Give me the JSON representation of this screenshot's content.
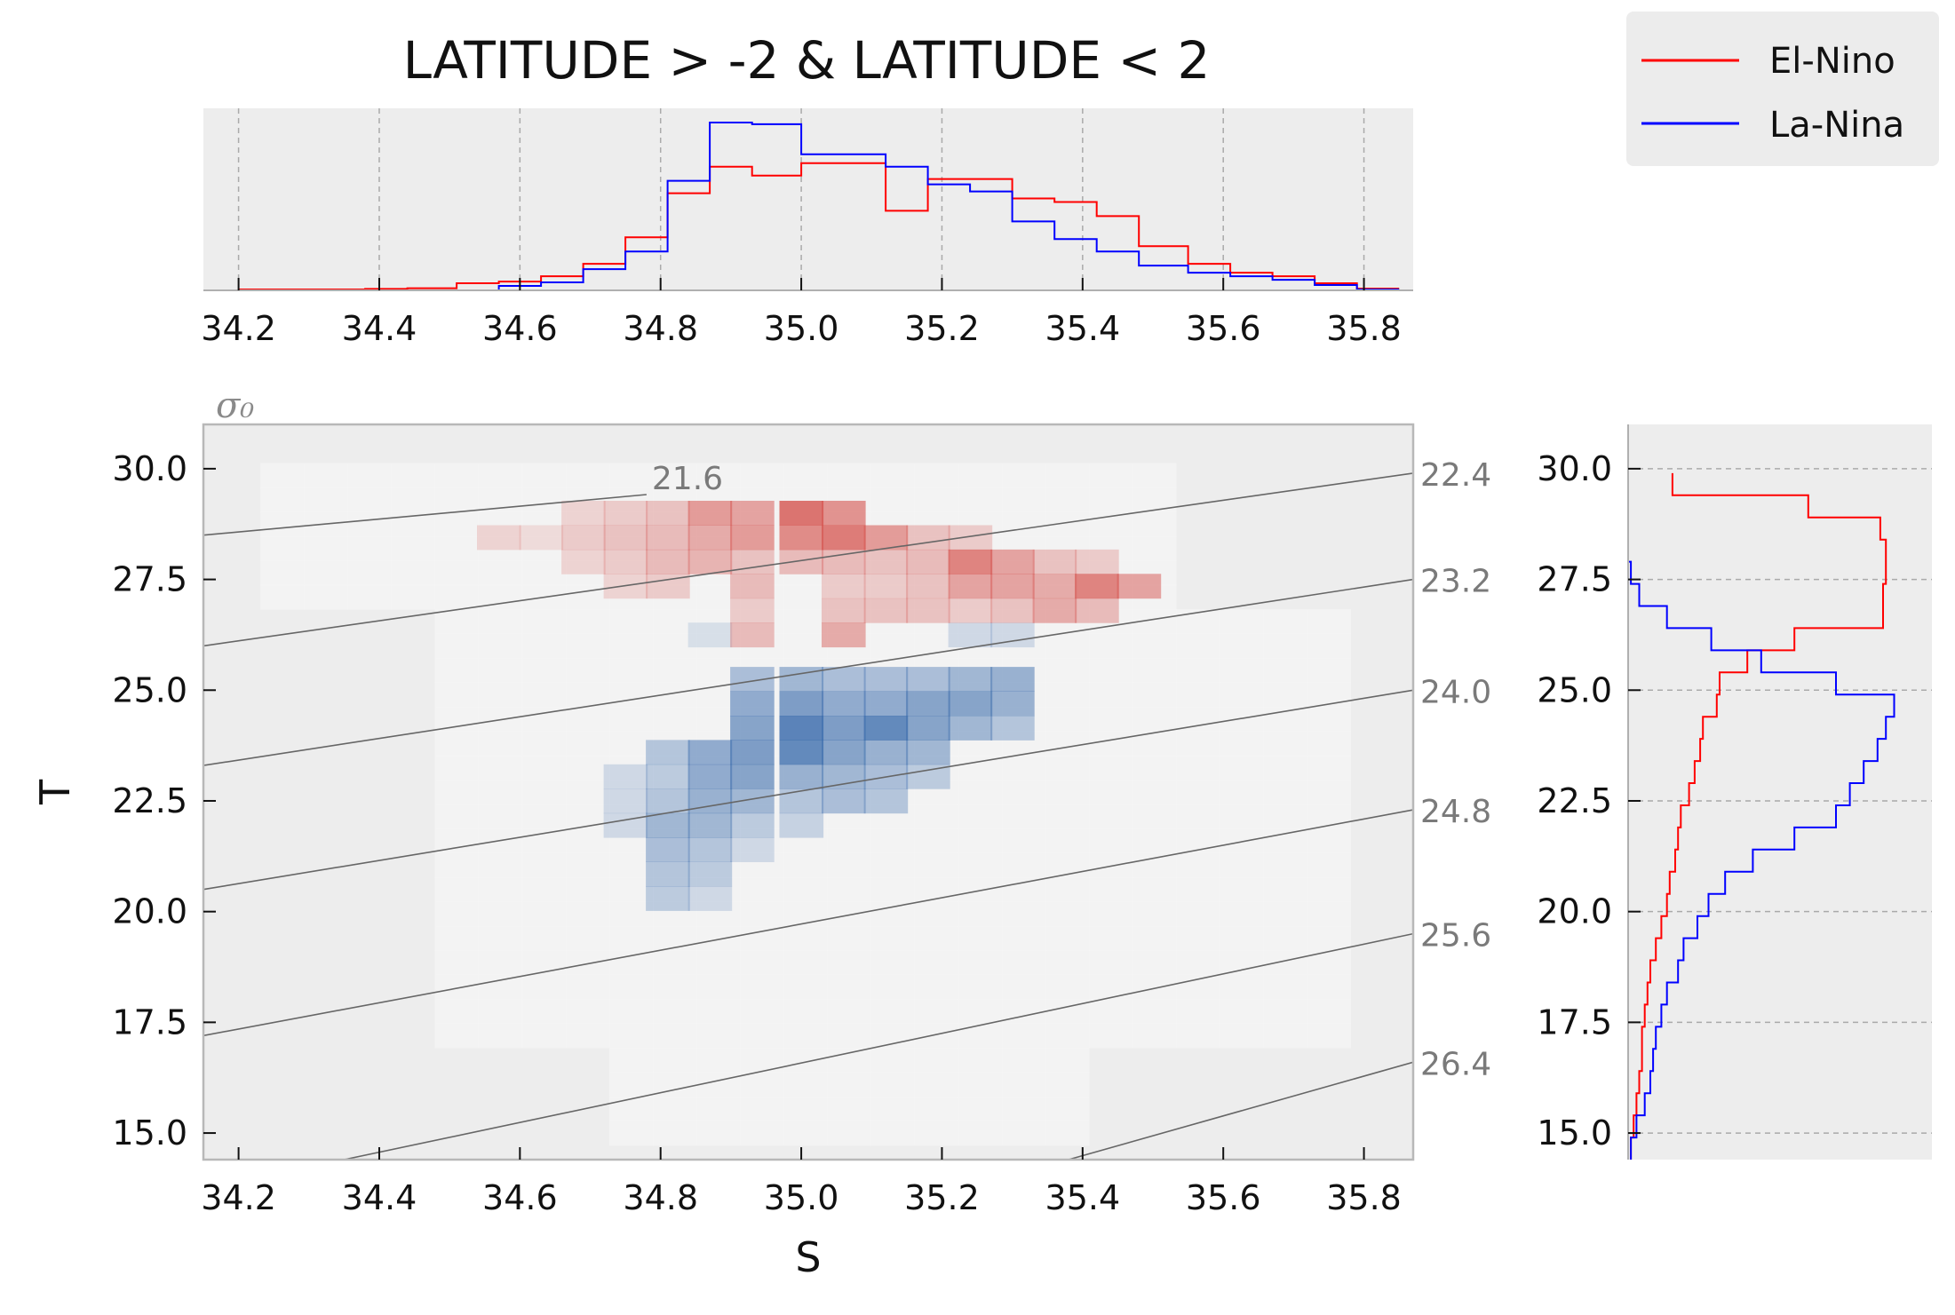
{
  "chart_data": [
    {
      "type": "heatmap",
      "title": "",
      "xlabel": "S",
      "ylabel": "T",
      "xlim": [
        34.15,
        35.87
      ],
      "ylim": [
        14.4,
        31.0
      ],
      "xticks": [
        "34.2",
        "34.4",
        "34.6",
        "34.8",
        "35.0",
        "35.2",
        "35.4",
        "35.6",
        "35.8"
      ],
      "yticks": [
        "15.0",
        "17.5",
        "20.0",
        "22.5",
        "25.0",
        "27.5",
        "30.0"
      ],
      "colormap": "diverging red (El-Nino) / blue (La-Nina)",
      "contour_variable_label": "σ₀",
      "contours": [
        {
          "label": "21.6",
          "y_at_left": 28.5,
          "y_at_right": 31.0,
          "x_end": 34.78
        },
        {
          "label": "22.4",
          "y_at_left": 26.0,
          "y_at_right": 29.9
        },
        {
          "label": "23.2",
          "y_at_left": 23.3,
          "y_at_right": 27.5
        },
        {
          "label": "24.0",
          "y_at_left": 20.5,
          "y_at_right": 25.0
        },
        {
          "label": "24.8",
          "y_at_left": 17.2,
          "y_at_right": 22.3
        },
        {
          "label": "25.6",
          "y_at_left": 14.4,
          "y_at_right": 19.5,
          "x_start": 34.35
        },
        {
          "label": "26.4",
          "y_at_left": 14.4,
          "y_at_right": 16.6,
          "x_start": 35.38
        }
      ],
      "red_cells": [
        [
          34.87,
          29.0,
          0.55
        ],
        [
          34.93,
          29.0,
          0.5
        ],
        [
          35.0,
          29.0,
          0.8
        ],
        [
          35.06,
          29.0,
          0.6
        ],
        [
          34.93,
          28.45,
          0.55
        ],
        [
          35.0,
          28.45,
          0.65
        ],
        [
          35.06,
          28.45,
          0.75
        ],
        [
          35.12,
          28.45,
          0.55
        ],
        [
          34.75,
          29.0,
          0.25
        ],
        [
          34.81,
          29.0,
          0.3
        ],
        [
          34.69,
          29.0,
          0.2
        ],
        [
          34.81,
          28.45,
          0.35
        ],
        [
          34.75,
          28.45,
          0.3
        ],
        [
          34.87,
          28.45,
          0.45
        ],
        [
          35.18,
          28.45,
          0.3
        ],
        [
          35.24,
          28.45,
          0.25
        ],
        [
          34.57,
          28.45,
          0.2
        ],
        [
          34.63,
          28.45,
          0.15
        ],
        [
          34.69,
          28.45,
          0.25
        ],
        [
          35.24,
          27.9,
          0.7
        ],
        [
          35.3,
          27.9,
          0.5
        ],
        [
          35.36,
          27.9,
          0.3
        ],
        [
          35.42,
          27.9,
          0.25
        ],
        [
          35.18,
          27.9,
          0.35
        ],
        [
          35.12,
          27.9,
          0.3
        ],
        [
          35.06,
          27.9,
          0.35
        ],
        [
          35.0,
          27.9,
          0.35
        ],
        [
          34.93,
          27.9,
          0.3
        ],
        [
          34.87,
          27.9,
          0.4
        ],
        [
          34.81,
          27.9,
          0.35
        ],
        [
          34.75,
          27.9,
          0.25
        ],
        [
          34.69,
          27.9,
          0.2
        ],
        [
          35.42,
          27.35,
          0.7
        ],
        [
          35.48,
          27.35,
          0.5
        ],
        [
          35.3,
          27.35,
          0.5
        ],
        [
          35.36,
          27.35,
          0.45
        ],
        [
          35.24,
          27.35,
          0.5
        ],
        [
          35.18,
          27.35,
          0.3
        ],
        [
          35.12,
          27.35,
          0.25
        ],
        [
          35.06,
          27.35,
          0.25
        ],
        [
          34.93,
          27.35,
          0.35
        ],
        [
          34.81,
          27.35,
          0.25
        ],
        [
          34.75,
          27.35,
          0.2
        ],
        [
          35.36,
          26.8,
          0.45
        ],
        [
          35.42,
          26.8,
          0.35
        ],
        [
          35.3,
          26.8,
          0.3
        ],
        [
          35.24,
          26.8,
          0.25
        ],
        [
          35.18,
          26.8,
          0.3
        ],
        [
          35.12,
          26.8,
          0.3
        ],
        [
          35.06,
          26.8,
          0.3
        ],
        [
          34.93,
          26.8,
          0.25
        ],
        [
          35.06,
          26.25,
          0.45
        ],
        [
          34.93,
          26.25,
          0.35
        ]
      ],
      "blue_cells": [
        [
          35.0,
          24.15,
          0.85
        ],
        [
          35.06,
          24.15,
          0.65
        ],
        [
          35.12,
          24.15,
          0.8
        ],
        [
          35.18,
          24.15,
          0.6
        ],
        [
          34.93,
          24.15,
          0.6
        ],
        [
          35.24,
          24.15,
          0.45
        ],
        [
          35.3,
          24.15,
          0.35
        ],
        [
          34.93,
          24.7,
          0.55
        ],
        [
          35.0,
          24.7,
          0.65
        ],
        [
          35.06,
          24.7,
          0.55
        ],
        [
          35.12,
          24.7,
          0.55
        ],
        [
          35.18,
          24.7,
          0.6
        ],
        [
          35.24,
          24.7,
          0.6
        ],
        [
          35.3,
          24.7,
          0.5
        ],
        [
          34.93,
          25.25,
          0.4
        ],
        [
          35.0,
          25.25,
          0.45
        ],
        [
          35.06,
          25.25,
          0.4
        ],
        [
          35.12,
          25.25,
          0.4
        ],
        [
          35.18,
          25.25,
          0.4
        ],
        [
          35.24,
          25.25,
          0.45
        ],
        [
          35.3,
          25.25,
          0.5
        ],
        [
          34.87,
          23.6,
          0.55
        ],
        [
          34.93,
          23.6,
          0.65
        ],
        [
          35.0,
          23.6,
          0.8
        ],
        [
          35.06,
          23.6,
          0.6
        ],
        [
          35.12,
          23.6,
          0.5
        ],
        [
          35.18,
          23.6,
          0.45
        ],
        [
          34.81,
          23.6,
          0.35
        ],
        [
          34.81,
          23.05,
          0.3
        ],
        [
          34.87,
          23.05,
          0.55
        ],
        [
          34.93,
          23.05,
          0.6
        ],
        [
          35.0,
          23.05,
          0.5
        ],
        [
          35.06,
          23.05,
          0.45
        ],
        [
          35.12,
          23.05,
          0.4
        ],
        [
          35.18,
          23.05,
          0.3
        ],
        [
          34.81,
          22.5,
          0.35
        ],
        [
          34.87,
          22.5,
          0.5
        ],
        [
          34.93,
          22.5,
          0.45
        ],
        [
          35.0,
          22.5,
          0.35
        ],
        [
          35.06,
          22.5,
          0.4
        ],
        [
          35.12,
          22.5,
          0.35
        ],
        [
          34.81,
          21.95,
          0.45
        ],
        [
          34.87,
          21.95,
          0.45
        ],
        [
          34.93,
          21.95,
          0.3
        ],
        [
          35.0,
          21.95,
          0.25
        ],
        [
          34.81,
          21.4,
          0.4
        ],
        [
          34.87,
          21.4,
          0.35
        ],
        [
          34.93,
          21.4,
          0.2
        ],
        [
          34.81,
          20.85,
          0.35
        ],
        [
          34.87,
          20.85,
          0.3
        ],
        [
          34.81,
          20.3,
          0.3
        ],
        [
          34.87,
          20.3,
          0.2
        ],
        [
          34.75,
          23.05,
          0.2
        ],
        [
          34.75,
          22.5,
          0.2
        ],
        [
          34.75,
          21.95,
          0.2
        ],
        [
          34.87,
          26.25,
          0.15
        ],
        [
          35.24,
          26.25,
          0.2
        ],
        [
          35.3,
          26.25,
          0.2
        ]
      ]
    },
    {
      "type": "line",
      "title": "LATITUDE > -2 & LATITUDE < 2",
      "xlim": [
        34.15,
        35.87
      ],
      "xticks": [
        "34.2",
        "34.4",
        "34.6",
        "34.8",
        "35.0",
        "35.2",
        "35.4",
        "35.6",
        "35.8"
      ],
      "x_edges": [
        34.2,
        34.26,
        34.32,
        34.38,
        34.44,
        34.51,
        34.57,
        34.63,
        34.69,
        34.75,
        34.81,
        34.87,
        34.93,
        35.0,
        35.06,
        35.12,
        35.18,
        35.24,
        35.3,
        35.36,
        35.42,
        35.48,
        35.55,
        35.61,
        35.67,
        35.73,
        35.79,
        35.85
      ],
      "series": [
        {
          "name": "El-Nino",
          "color": "#ff0000",
          "values": [
            0.005,
            0.005,
            0.005,
            0.008,
            0.012,
            0.04,
            0.05,
            0.08,
            0.15,
            0.3,
            0.55,
            0.7,
            0.65,
            0.72,
            0.72,
            0.45,
            0.63,
            0.63,
            0.52,
            0.5,
            0.42,
            0.25,
            0.15,
            0.1,
            0.08,
            0.04,
            0.01
          ]
        },
        {
          "name": "La-Nina",
          "color": "#0000ff",
          "values": [
            0.0,
            0.0,
            0.0,
            0.0,
            0.0,
            0.0,
            0.025,
            0.045,
            0.12,
            0.22,
            0.62,
            0.95,
            0.94,
            0.77,
            0.77,
            0.7,
            0.6,
            0.56,
            0.39,
            0.29,
            0.22,
            0.14,
            0.1,
            0.08,
            0.06,
            0.03,
            0.005
          ]
        }
      ]
    },
    {
      "type": "line",
      "ylim": [
        14.4,
        31.0
      ],
      "yticks": [
        "15.0",
        "17.5",
        "20.0",
        "22.5",
        "25.0",
        "27.5",
        "30.0"
      ],
      "y_edges": [
        14.4,
        14.9,
        15.4,
        15.9,
        16.4,
        16.9,
        17.4,
        17.9,
        18.4,
        18.9,
        19.4,
        19.9,
        20.4,
        20.9,
        21.4,
        21.9,
        22.4,
        22.9,
        23.4,
        23.9,
        24.4,
        24.9,
        25.4,
        25.9,
        26.4,
        26.9,
        27.4,
        27.9,
        28.4,
        28.9,
        29.4,
        29.9
      ],
      "series": [
        {
          "name": "El-Nino",
          "color": "#ff0000",
          "values": [
            0.01,
            0.02,
            0.03,
            0.04,
            0.05,
            0.05,
            0.06,
            0.07,
            0.08,
            0.1,
            0.12,
            0.14,
            0.15,
            0.17,
            0.18,
            0.19,
            0.22,
            0.24,
            0.26,
            0.27,
            0.32,
            0.33,
            0.43,
            0.6,
            0.92,
            0.92,
            0.93,
            0.93,
            0.91,
            0.65,
            0.16
          ]
        },
        {
          "name": "La-Nina",
          "color": "#0000ff",
          "values": [
            0.01,
            0.03,
            0.06,
            0.08,
            0.09,
            0.1,
            0.12,
            0.14,
            0.18,
            0.2,
            0.25,
            0.29,
            0.35,
            0.45,
            0.6,
            0.75,
            0.8,
            0.85,
            0.9,
            0.93,
            0.96,
            0.75,
            0.48,
            0.3,
            0.14,
            0.04,
            0.01,
            0.0,
            0.0,
            0.0,
            0.0
          ]
        }
      ]
    }
  ],
  "legend": {
    "entries": [
      {
        "label": "El-Nino",
        "color": "#ff0000"
      },
      {
        "label": "La-Nina",
        "color": "#0000ff"
      }
    ]
  }
}
